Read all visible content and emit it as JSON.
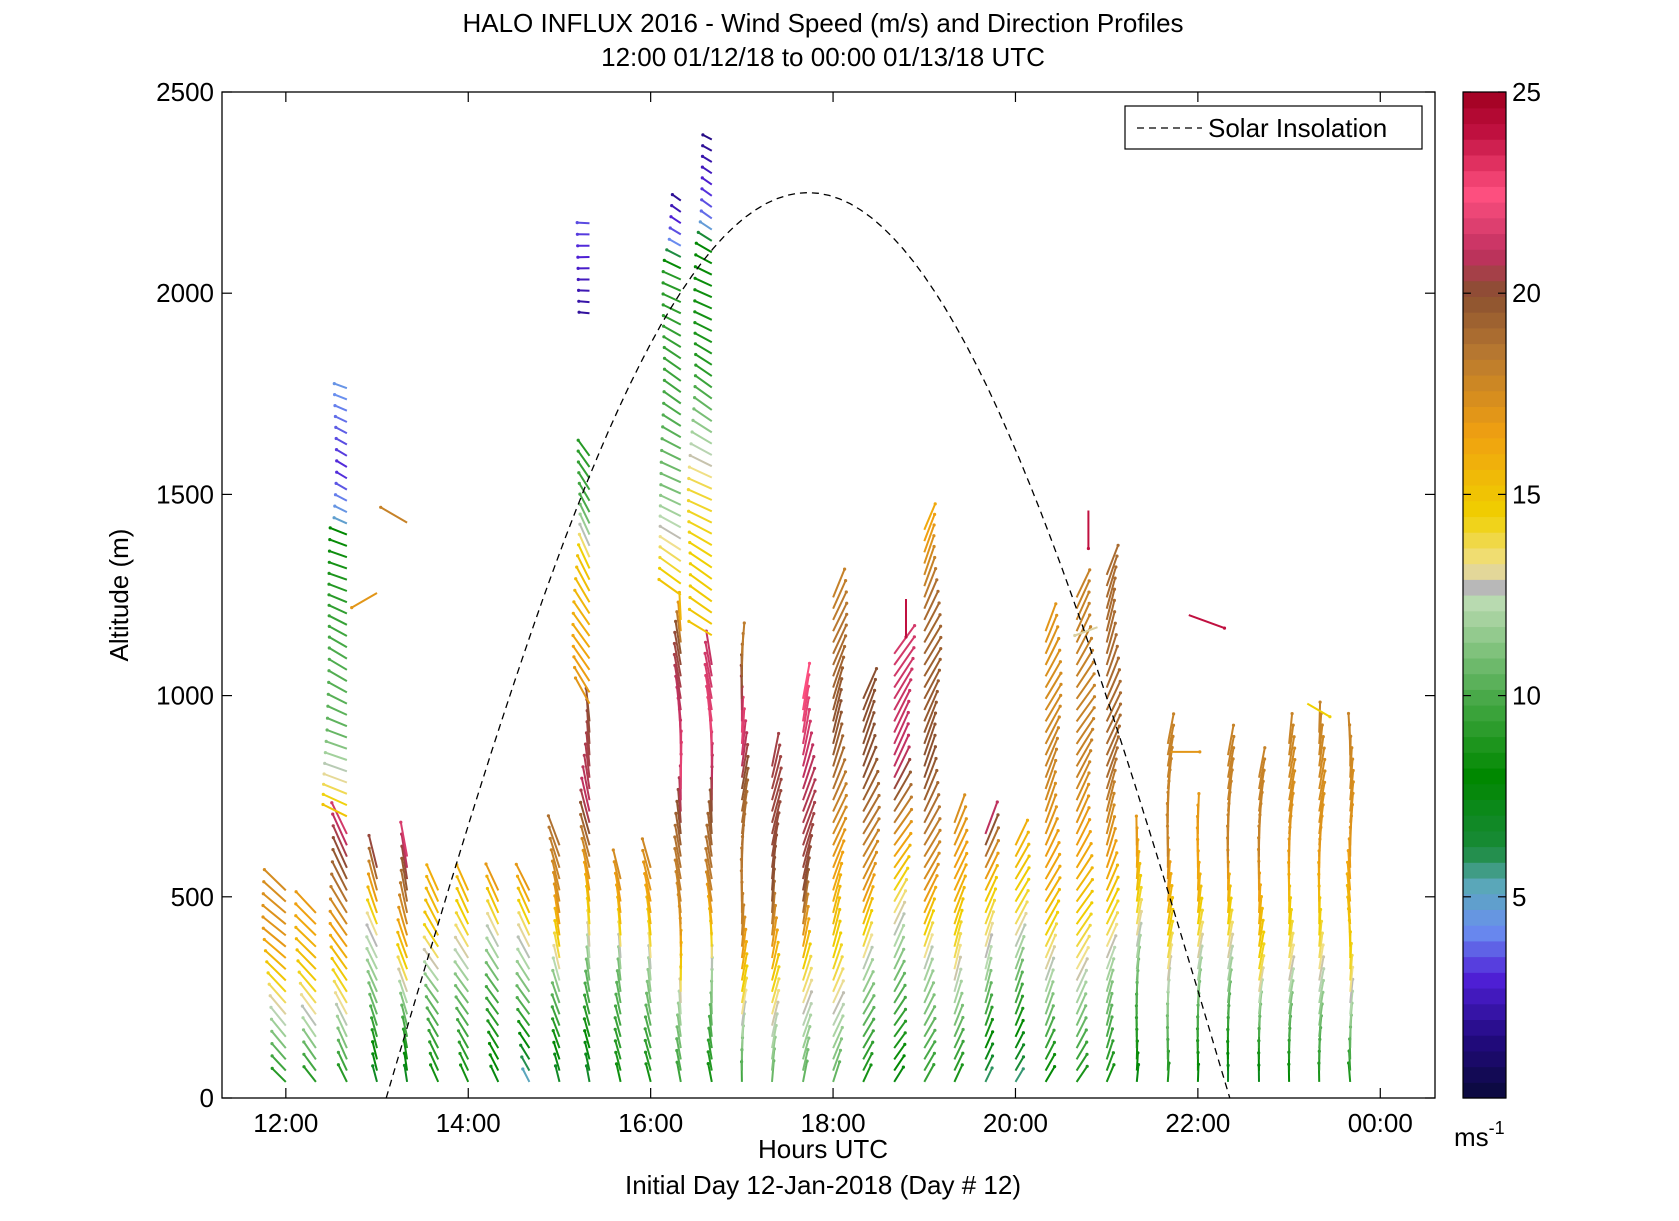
{
  "chart_data": {
    "type": "scatter",
    "title": "HALO INFLUX 2016 - Wind Speed (m/s) and Direction Profiles",
    "subtitle": "12:00 01/12/18 to 00:00 01/13/18  UTC",
    "xlabel": "Hours UTC",
    "xlabel2": "Initial Day 12-Jan-2018 (Day # 12)",
    "ylabel": "Altitude (m)",
    "xlim": [
      11.3,
      24.6
    ],
    "ylim": [
      0,
      2500
    ],
    "x_ticks": [
      {
        "value": 12,
        "label": "12:00"
      },
      {
        "value": 14,
        "label": "14:00"
      },
      {
        "value": 16,
        "label": "16:00"
      },
      {
        "value": 18,
        "label": "18:00"
      },
      {
        "value": 20,
        "label": "20:00"
      },
      {
        "value": 22,
        "label": "22:00"
      },
      {
        "value": 24,
        "label": "00:00"
      }
    ],
    "y_ticks": [
      {
        "value": 0,
        "label": "0"
      },
      {
        "value": 500,
        "label": "500"
      },
      {
        "value": 1000,
        "label": "1000"
      },
      {
        "value": 1500,
        "label": "1500"
      },
      {
        "value": 2000,
        "label": "2000"
      },
      {
        "value": 2500,
        "label": "2500"
      }
    ],
    "legend": {
      "label": "Solar Insolation",
      "placement": "top-right",
      "style": "dashed",
      "color": "#000000"
    },
    "solar_insolation": {
      "start_hour": 13.1,
      "peak_hour": 17.75,
      "end_hour": 22.35,
      "peak_altitude": 2250
    },
    "colorbar": {
      "range": [
        0,
        25
      ],
      "ticks": [
        {
          "value": 5,
          "label": "5"
        },
        {
          "value": 10,
          "label": "10"
        },
        {
          "value": 15,
          "label": "15"
        },
        {
          "value": 20,
          "label": "20"
        },
        {
          "value": 25,
          "label": "25"
        }
      ],
      "unit_label": "ms",
      "unit_exp": "-1",
      "stops": [
        {
          "v": 0,
          "c": "#0a0a3a"
        },
        {
          "v": 1.5,
          "c": "#220a80"
        },
        {
          "v": 3,
          "c": "#5020d8"
        },
        {
          "v": 4.2,
          "c": "#6a90f0"
        },
        {
          "v": 5.3,
          "c": "#5aa8b8"
        },
        {
          "v": 6.2,
          "c": "#1a8a3a"
        },
        {
          "v": 8,
          "c": "#008800"
        },
        {
          "v": 10,
          "c": "#4aaa4a"
        },
        {
          "v": 12.3,
          "c": "#b8dab0"
        },
        {
          "v": 12.7,
          "c": "#b8b8b8"
        },
        {
          "v": 13.2,
          "c": "#f0e090"
        },
        {
          "v": 14.5,
          "c": "#f0d000"
        },
        {
          "v": 16.5,
          "c": "#f0a010"
        },
        {
          "v": 18.5,
          "c": "#b87830"
        },
        {
          "v": 20,
          "c": "#8a5030"
        },
        {
          "v": 21,
          "c": "#c03060"
        },
        {
          "v": 22.5,
          "c": "#ff5080"
        },
        {
          "v": 24,
          "c": "#c01040"
        },
        {
          "v": 25,
          "c": "#a00020"
        }
      ]
    },
    "profiles": [
      {
        "t": 12.0,
        "top": 520,
        "spd": [
          [
            0,
            8
          ],
          [
            120,
            11
          ],
          [
            250,
            14
          ],
          [
            380,
            17
          ],
          [
            520,
            17.5
          ]
        ],
        "dir": 315
      },
      {
        "t": 12.33,
        "top": 480,
        "spd": [
          [
            0,
            8
          ],
          [
            150,
            12
          ],
          [
            300,
            15
          ],
          [
            480,
            17
          ]
        ],
        "dir": 320
      },
      {
        "t": 12.67,
        "top": 660,
        "spd": [
          [
            0,
            8
          ],
          [
            200,
            13
          ],
          [
            350,
            16
          ],
          [
            500,
            19
          ],
          [
            660,
            21.5
          ]
        ],
        "dir": 330
      },
      {
        "t": 12.67,
        "top": 1780,
        "bottom": 700,
        "spd": [
          [
            700,
            15
          ],
          [
            900,
            10.5
          ],
          [
            1100,
            10
          ],
          [
            1400,
            8
          ],
          [
            1420,
            5
          ],
          [
            1550,
            3
          ],
          [
            1780,
            4.5
          ]
        ],
        "dir": 295
      },
      {
        "t": 13.0,
        "top": 590,
        "spd": [
          [
            0,
            6
          ],
          [
            200,
            10.5
          ],
          [
            400,
            13
          ],
          [
            590,
            21
          ]
        ],
        "dir": 340
      },
      {
        "t": 13.33,
        "top": 620,
        "spd": [
          [
            0,
            6
          ],
          [
            200,
            11
          ],
          [
            400,
            17
          ],
          [
            620,
            22
          ]
        ],
        "dir": 345
      },
      {
        "t": 13.33,
        "top": 1460,
        "bottom": 1400,
        "spd": [
          [
            1400,
            18
          ],
          [
            1460,
            18
          ]
        ],
        "dir": 300,
        "single": true
      },
      {
        "t": 13.0,
        "top": 1270,
        "bottom": 1240,
        "spd": [
          [
            1240,
            17
          ],
          [
            1270,
            17
          ]
        ],
        "dir": 240,
        "single": true
      },
      {
        "t": 13.67,
        "top": 520,
        "spd": [
          [
            0,
            8
          ],
          [
            250,
            11
          ],
          [
            400,
            15
          ],
          [
            520,
            16
          ]
        ],
        "dir": 330
      },
      {
        "t": 14.0,
        "top": 520,
        "spd": [
          [
            0,
            8
          ],
          [
            250,
            11
          ],
          [
            400,
            14
          ],
          [
            520,
            16
          ]
        ],
        "dir": 330
      },
      {
        "t": 14.33,
        "top": 520,
        "spd": [
          [
            0,
            7
          ],
          [
            250,
            10
          ],
          [
            400,
            13
          ],
          [
            520,
            17
          ]
        ],
        "dir": 330
      },
      {
        "t": 14.67,
        "top": 520,
        "spd": [
          [
            0,
            4
          ],
          [
            200,
            10
          ],
          [
            400,
            13.5
          ],
          [
            520,
            17
          ]
        ],
        "dir": 330
      },
      {
        "t": 15.0,
        "top": 650,
        "spd": [
          [
            0,
            6
          ],
          [
            250,
            11
          ],
          [
            450,
            17
          ],
          [
            650,
            19
          ]
        ],
        "dir": 345
      },
      {
        "t": 15.33,
        "top": 960,
        "spd": [
          [
            0,
            6
          ],
          [
            300,
            11
          ],
          [
            500,
            16
          ],
          [
            700,
            21
          ],
          [
            960,
            20
          ]
        ],
        "dir": 350
      },
      {
        "t": 15.33,
        "top": 1600,
        "bottom": 980,
        "spd": [
          [
            980,
            17
          ],
          [
            1300,
            15
          ],
          [
            1450,
            10
          ],
          [
            1600,
            9
          ]
        ],
        "dir": 330
      },
      {
        "t": 15.33,
        "top": 2180,
        "bottom": 1950,
        "spd": [
          [
            1950,
            2
          ],
          [
            2100,
            3
          ],
          [
            2180,
            3.5
          ]
        ],
        "dir": 275
      },
      {
        "t": 15.67,
        "top": 570,
        "spd": [
          [
            0,
            8
          ],
          [
            300,
            11
          ],
          [
            450,
            16
          ],
          [
            570,
            18
          ]
        ],
        "dir": 350
      },
      {
        "t": 16.0,
        "top": 590,
        "spd": [
          [
            0,
            8
          ],
          [
            300,
            12
          ],
          [
            450,
            16
          ],
          [
            590,
            18
          ]
        ],
        "dir": 350
      },
      {
        "t": 16.33,
        "top": 1200,
        "spd": [
          [
            0,
            9
          ],
          [
            200,
            12
          ],
          [
            400,
            17
          ],
          [
            600,
            19
          ],
          [
            800,
            22
          ],
          [
            1100,
            20
          ],
          [
            1200,
            15
          ]
        ],
        "dir": 355
      },
      {
        "t": 16.33,
        "top": 2250,
        "bottom": 1250,
        "spd": [
          [
            1250,
            15
          ],
          [
            1500,
            11
          ],
          [
            1800,
            9.5
          ],
          [
            2050,
            9
          ],
          [
            2120,
            4
          ],
          [
            2250,
            1.5
          ]
        ],
        "dir": 300
      },
      {
        "t": 16.67,
        "top": 1100,
        "spd": [
          [
            0,
            8
          ],
          [
            300,
            12
          ],
          [
            500,
            18
          ],
          [
            700,
            20
          ],
          [
            900,
            22
          ],
          [
            1100,
            21
          ]
        ],
        "dir": 355
      },
      {
        "t": 16.67,
        "top": 2390,
        "bottom": 1150,
        "spd": [
          [
            1150,
            15
          ],
          [
            1500,
            14
          ],
          [
            1800,
            9
          ],
          [
            2100,
            8
          ],
          [
            2170,
            4
          ],
          [
            2390,
            1.5
          ]
        ],
        "dir": 300
      },
      {
        "t": 17.0,
        "top": 1120,
        "spd": [
          [
            0,
            9
          ],
          [
            200,
            13
          ],
          [
            400,
            18
          ],
          [
            700,
            19
          ],
          [
            900,
            22
          ],
          [
            1120,
            18
          ]
        ],
        "dir": 5
      },
      {
        "t": 17.33,
        "top": 850,
        "spd": [
          [
            0,
            10
          ],
          [
            250,
            14
          ],
          [
            500,
            20
          ],
          [
            850,
            20.5
          ]
        ],
        "dir": 10
      },
      {
        "t": 17.67,
        "top": 1000,
        "spd": [
          [
            0,
            10
          ],
          [
            300,
            14
          ],
          [
            500,
            20
          ],
          [
            800,
            21
          ],
          [
            1000,
            22.5
          ]
        ],
        "dir": 15
      },
      {
        "t": 18.0,
        "top": 1250,
        "spd": [
          [
            0,
            10
          ],
          [
            300,
            14
          ],
          [
            600,
            17
          ],
          [
            900,
            20
          ],
          [
            1250,
            18
          ]
        ],
        "dir": 20
      },
      {
        "t": 18.33,
        "top": 1000,
        "spd": [
          [
            0,
            8
          ],
          [
            300,
            12
          ],
          [
            500,
            17
          ],
          [
            800,
            20
          ],
          [
            1000,
            20
          ]
        ],
        "dir": 25
      },
      {
        "t": 18.67,
        "top": 1130,
        "spd": [
          [
            0,
            7
          ],
          [
            300,
            11
          ],
          [
            500,
            14
          ],
          [
            800,
            21
          ],
          [
            1130,
            21.5
          ]
        ],
        "dir": 30
      },
      {
        "t": 19.0,
        "top": 1420,
        "spd": [
          [
            0,
            9
          ],
          [
            300,
            12
          ],
          [
            500,
            17
          ],
          [
            800,
            20
          ],
          [
            1200,
            19
          ],
          [
            1420,
            16
          ]
        ],
        "dir": 25
      },
      {
        "t": 19.33,
        "top": 700,
        "spd": [
          [
            0,
            8
          ],
          [
            300,
            13
          ],
          [
            500,
            16
          ],
          [
            700,
            17.5
          ]
        ],
        "dir": 20
      },
      {
        "t": 19.67,
        "top": 670,
        "spd": [
          [
            0,
            5
          ],
          [
            300,
            12
          ],
          [
            500,
            15
          ],
          [
            670,
            21.5
          ]
        ],
        "dir": 20
      },
      {
        "t": 20.0,
        "top": 640,
        "spd": [
          [
            0,
            5
          ],
          [
            250,
            10
          ],
          [
            450,
            14
          ],
          [
            640,
            16
          ]
        ],
        "dir": 25
      },
      {
        "t": 20.33,
        "top": 1180,
        "spd": [
          [
            0,
            7
          ],
          [
            200,
            11
          ],
          [
            500,
            16
          ],
          [
            800,
            18
          ],
          [
            1180,
            17
          ]
        ],
        "dir": 25
      },
      {
        "t": 20.67,
        "top": 1250,
        "spd": [
          [
            0,
            8
          ],
          [
            300,
            13
          ],
          [
            550,
            16
          ],
          [
            800,
            18
          ],
          [
            1250,
            18
          ]
        ],
        "dir": 30
      },
      {
        "t": 21.0,
        "top": 1320,
        "spd": [
          [
            0,
            8
          ],
          [
            300,
            12
          ],
          [
            600,
            17
          ],
          [
            800,
            19
          ],
          [
            1320,
            19
          ]
        ],
        "dir": 20
      },
      {
        "t": 21.33,
        "top": 630,
        "spd": [
          [
            0,
            7
          ],
          [
            300,
            11
          ],
          [
            500,
            15
          ],
          [
            630,
            17
          ]
        ],
        "dir": 5
      },
      {
        "t": 21.67,
        "top": 900,
        "spd": [
          [
            0,
            8
          ],
          [
            300,
            13
          ],
          [
            600,
            18
          ],
          [
            900,
            18
          ]
        ],
        "dir": 5
      },
      {
        "t": 22.0,
        "top": 700,
        "spd": [
          [
            0,
            7
          ],
          [
            300,
            12
          ],
          [
            500,
            16
          ],
          [
            700,
            17
          ]
        ],
        "dir": 5
      },
      {
        "t": 22.33,
        "top": 870,
        "spd": [
          [
            0,
            6
          ],
          [
            300,
            12
          ],
          [
            600,
            18
          ],
          [
            870,
            18
          ]
        ],
        "dir": 5
      },
      {
        "t": 22.67,
        "top": 800,
        "spd": [
          [
            0,
            6
          ],
          [
            300,
            14
          ],
          [
            600,
            18
          ],
          [
            800,
            18
          ]
        ],
        "dir": 5
      },
      {
        "t": 23.0,
        "top": 900,
        "spd": [
          [
            0,
            7
          ],
          [
            300,
            13
          ],
          [
            600,
            17
          ],
          [
            900,
            18
          ]
        ],
        "dir": 5
      },
      {
        "t": 23.33,
        "top": 910,
        "spd": [
          [
            0,
            8
          ],
          [
            300,
            13
          ],
          [
            600,
            17
          ],
          [
            910,
            18
          ]
        ],
        "dir": 5
      },
      {
        "t": 23.67,
        "top": 900,
        "spd": [
          [
            0,
            8
          ],
          [
            300,
            14
          ],
          [
            600,
            17
          ],
          [
            900,
            18
          ]
        ],
        "dir": 0
      }
    ],
    "isolated_vectors": [
      {
        "t": 18.8,
        "alt": 1240,
        "spd": 24,
        "dir": 180
      },
      {
        "t": 20.8,
        "alt": 1460,
        "spd": 24,
        "dir": 180
      },
      {
        "t": 21.9,
        "alt": 1200,
        "spd": 24,
        "dir": 110
      },
      {
        "t": 21.7,
        "alt": 860,
        "spd": 17,
        "dir": 90
      },
      {
        "t": 23.2,
        "alt": 980,
        "spd": 14.5,
        "dir": 120
      },
      {
        "t": 20.9,
        "alt": 1170,
        "spd": 13,
        "dir": 250
      }
    ]
  }
}
